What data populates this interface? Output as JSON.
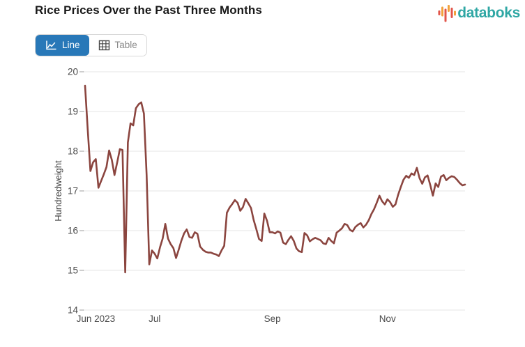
{
  "header": {
    "title": "Rice Prices Over the Past Three Months"
  },
  "logo": {
    "text": "databoks",
    "text_color": "#2FA7A4",
    "bar_colors": {
      "red": "#E25449",
      "orange": "#F2A13C"
    }
  },
  "toolbar": {
    "line_label": "Line",
    "table_label": "Table",
    "active_view": "Line",
    "active_bg": "#2878B8"
  },
  "chart_data": {
    "type": "line",
    "title": "Rice Prices Over the Past Three Months",
    "xlabel": "",
    "ylabel": "Hundredweight",
    "ylim": [
      14,
      20
    ],
    "y_ticks": [
      14,
      15,
      16,
      17,
      18,
      19,
      20
    ],
    "x_tick_labels": [
      "Jun 2023",
      "Jul",
      "Sep",
      "Nov"
    ],
    "x_tick_indices": [
      4,
      26,
      70,
      113
    ],
    "x_frequency": "daily",
    "grid": true,
    "legend": false,
    "line_color": "#8B453F",
    "grid_color": "#E6E6E6",
    "tick_color": "#9E9E9E",
    "label_color": "#4A4A4A",
    "values": [
      19.65,
      18.55,
      17.5,
      17.72,
      17.8,
      17.08,
      17.25,
      17.42,
      17.6,
      18.02,
      17.78,
      17.4,
      17.72,
      18.05,
      18.03,
      14.95,
      18.22,
      18.7,
      18.65,
      19.08,
      19.18,
      19.23,
      18.95,
      17.4,
      15.15,
      15.5,
      15.42,
      15.3,
      15.58,
      15.8,
      16.17,
      15.8,
      15.66,
      15.56,
      15.31,
      15.52,
      15.75,
      15.93,
      16.03,
      15.84,
      15.82,
      15.96,
      15.92,
      15.6,
      15.52,
      15.47,
      15.45,
      15.45,
      15.42,
      15.4,
      15.36,
      15.5,
      15.62,
      16.45,
      16.58,
      16.67,
      16.77,
      16.7,
      16.5,
      16.59,
      16.8,
      16.69,
      16.57,
      16.27,
      16.04,
      15.79,
      15.74,
      16.43,
      16.25,
      15.96,
      15.96,
      15.93,
      15.98,
      15.95,
      15.7,
      15.66,
      15.77,
      15.86,
      15.74,
      15.55,
      15.48,
      15.46,
      15.94,
      15.88,
      15.73,
      15.78,
      15.82,
      15.79,
      15.76,
      15.68,
      15.66,
      15.82,
      15.74,
      15.68,
      15.95,
      16.0,
      16.06,
      16.17,
      16.14,
      16.02,
      15.98,
      16.09,
      16.15,
      16.19,
      16.08,
      16.15,
      16.26,
      16.42,
      16.54,
      16.7,
      16.88,
      16.74,
      16.66,
      16.79,
      16.72,
      16.6,
      16.66,
      16.9,
      17.1,
      17.28,
      17.38,
      17.33,
      17.44,
      17.4,
      17.58,
      17.32,
      17.18,
      17.34,
      17.39,
      17.15,
      16.88,
      17.19,
      17.1,
      17.36,
      17.4,
      17.27,
      17.33,
      17.37,
      17.35,
      17.28,
      17.2,
      17.14,
      17.16
    ]
  }
}
